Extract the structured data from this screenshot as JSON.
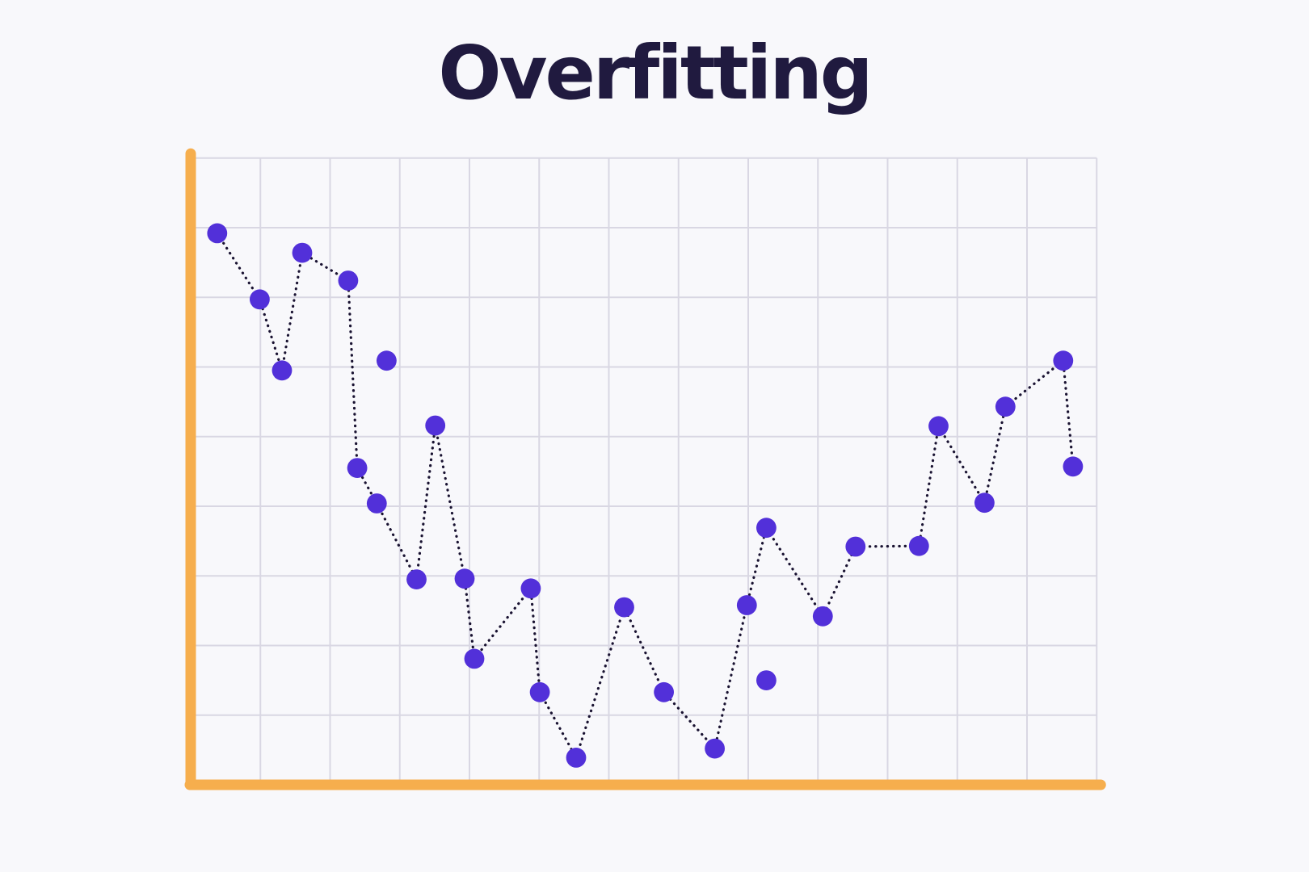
{
  "title": "Overfitting",
  "colors": {
    "background": "#f8f8fb",
    "grid_line": "#d9d7e3",
    "axis_orange": "#f6ae4d",
    "marker_indigo": "#5230d9",
    "dotted_line_navy": "#191231",
    "title_text": "#201a3f"
  },
  "chart_data": {
    "type": "scatter",
    "title": "Overfitting",
    "subtitle": "",
    "xlabel": "",
    "ylabel": "",
    "axis_tick_labels_visible": false,
    "legend_position": "none",
    "grid": "on",
    "grid_columns": 13,
    "grid_rows": 9,
    "xlim": [
      0,
      13
    ],
    "ylim": [
      0,
      9
    ],
    "units": "grid cells measured from bottom-left axis corner",
    "series": [
      {
        "name": "overfit-curve",
        "style": "dotted-line-with-round-markers",
        "points": [
          [
            0.38,
            7.92
          ],
          [
            0.99,
            6.97
          ],
          [
            1.31,
            5.95
          ],
          [
            1.6,
            7.64
          ],
          [
            2.26,
            7.24
          ],
          [
            2.39,
            4.55
          ],
          [
            2.67,
            4.04
          ],
          [
            3.24,
            2.95
          ],
          [
            3.51,
            5.16
          ],
          [
            3.93,
            2.96
          ],
          [
            4.07,
            1.81
          ],
          [
            4.88,
            2.82
          ],
          [
            5.01,
            1.33
          ],
          [
            5.53,
            0.39
          ],
          [
            6.22,
            2.55
          ],
          [
            6.79,
            1.33
          ],
          [
            7.52,
            0.52
          ],
          [
            7.98,
            2.58
          ],
          [
            8.26,
            3.69
          ],
          [
            9.07,
            2.42
          ],
          [
            9.54,
            3.42
          ],
          [
            10.45,
            3.43
          ],
          [
            10.73,
            5.15
          ],
          [
            11.39,
            4.05
          ],
          [
            11.69,
            5.43
          ],
          [
            12.52,
            6.09
          ],
          [
            12.66,
            4.57
          ]
        ]
      },
      {
        "name": "stray-points",
        "style": "markers-only",
        "points": [
          [
            2.81,
            6.09
          ],
          [
            8.26,
            1.5
          ]
        ]
      }
    ]
  }
}
